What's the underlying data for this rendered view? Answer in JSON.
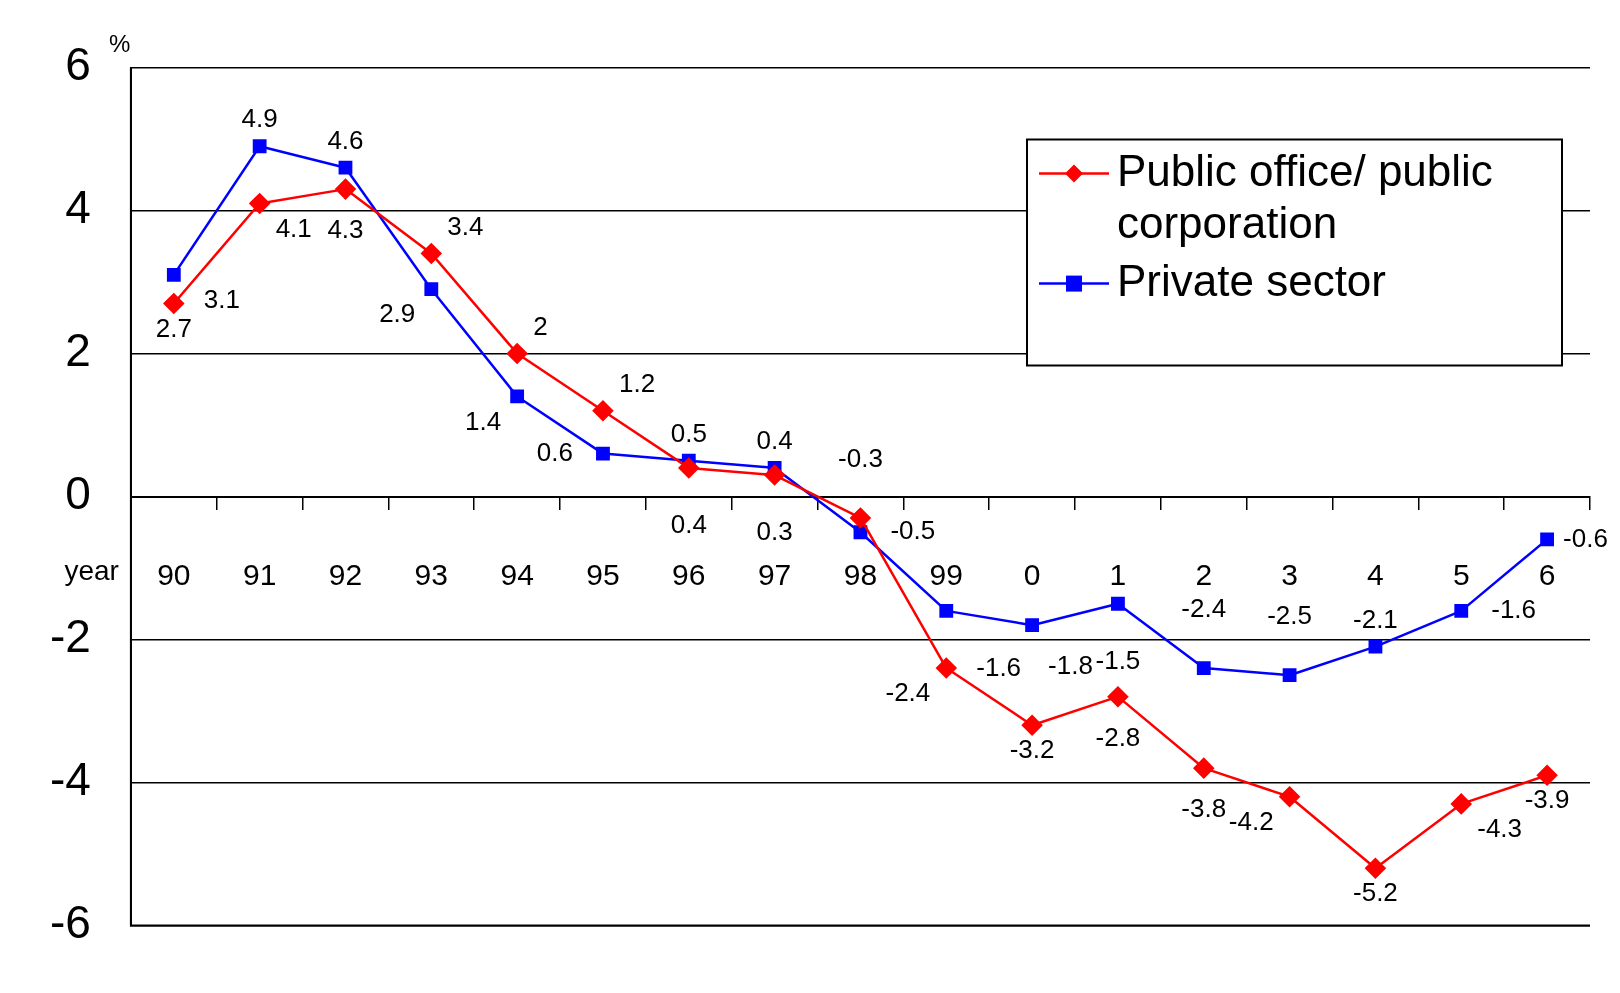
{
  "chart_data": {
    "type": "line",
    "ylabel": "%",
    "xlabel": "year",
    "categories": [
      "90",
      "91",
      "92",
      "93",
      "94",
      "95",
      "96",
      "97",
      "98",
      "99",
      "0",
      "1",
      "2",
      "3",
      "4",
      "5",
      "6"
    ],
    "series": [
      {
        "name": "Public office/ public corporation",
        "color": "#ff0000",
        "marker": "diamond",
        "values": [
          2.7,
          4.1,
          4.3,
          3.4,
          2,
          1.2,
          0.4,
          0.3,
          -0.3,
          -2.4,
          -3.2,
          -2.8,
          -3.8,
          -4.2,
          -5.2,
          -4.3,
          -3.9
        ]
      },
      {
        "name": "Private sector",
        "color": "#0000ff",
        "marker": "square",
        "values": [
          3.1,
          4.9,
          4.6,
          2.9,
          1.4,
          0.6,
          0.5,
          0.4,
          -0.5,
          -1.6,
          -1.8,
          -1.5,
          -2.4,
          -2.5,
          -2.1,
          -1.6,
          -0.6
        ]
      }
    ],
    "ylim": [
      -6,
      6
    ],
    "yticks": [
      -6,
      -4,
      -2,
      0,
      2,
      4,
      6
    ],
    "grid": "y",
    "legend": "top right",
    "data_labels": true,
    "line_style": "solid"
  }
}
